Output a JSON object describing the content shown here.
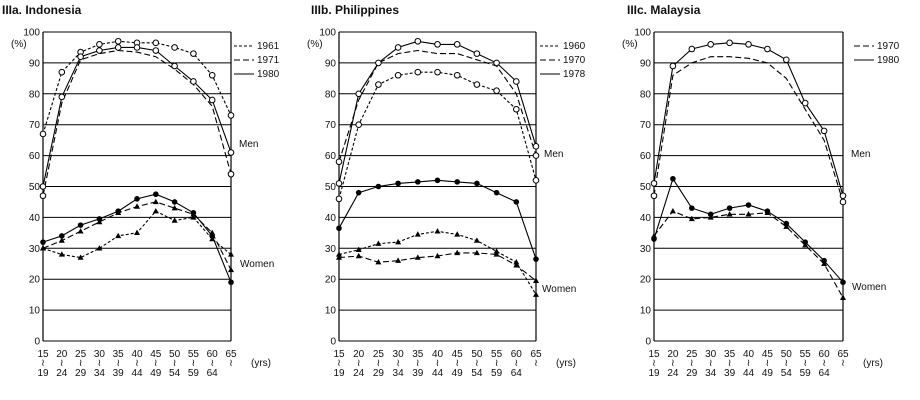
{
  "chart_data": [
    {
      "type": "line",
      "title": "IIIa. Indonesia",
      "y_unit_label": "(%)",
      "x_unit_label": "(yrs)",
      "ylim": [
        0,
        100
      ],
      "yticks": [
        "0",
        "10",
        "20",
        "30",
        "40",
        "50",
        "60",
        "70",
        "80",
        "90",
        "100"
      ],
      "x_labels": [
        [
          "15",
          "19"
        ],
        [
          "20",
          "24"
        ],
        [
          "25",
          "29"
        ],
        [
          "30",
          "34"
        ],
        [
          "35",
          "39"
        ],
        [
          "40",
          "44"
        ],
        [
          "45",
          "49"
        ],
        [
          "50",
          "54"
        ],
        [
          "55",
          "59"
        ],
        [
          "60",
          "64"
        ],
        [
          "65",
          ""
        ]
      ],
      "group_labels": {
        "men": "Men",
        "women": "Women"
      },
      "series": [
        {
          "name": "1961",
          "dash": "short",
          "group": "men",
          "values": [
            67,
            87,
            93.5,
            96,
            97,
            96.5,
            96.5,
            95,
            93,
            86,
            73
          ]
        },
        {
          "name": "1971",
          "dash": "long",
          "group": "men",
          "values": [
            47,
            77,
            91,
            93,
            94,
            93.5,
            92,
            88,
            83,
            76,
            54
          ]
        },
        {
          "name": "1980",
          "dash": "solid",
          "group": "men",
          "values": [
            50,
            79,
            92,
            94,
            95,
            95,
            94,
            89,
            84,
            78,
            61
          ]
        },
        {
          "group": "women",
          "dash": "short",
          "values": [
            30,
            28,
            27,
            30,
            34,
            35,
            42,
            39,
            40,
            33,
            28
          ]
        },
        {
          "group": "women",
          "dash": "long",
          "values": [
            30,
            32.5,
            35.5,
            38.5,
            41.5,
            43.5,
            45,
            43,
            41,
            35,
            23
          ]
        },
        {
          "group": "women",
          "dash": "solid",
          "values": [
            32,
            34,
            37.5,
            39.5,
            42,
            46,
            47.5,
            45,
            41.5,
            34,
            19
          ]
        }
      ]
    },
    {
      "type": "line",
      "title": "IIIb. Philippines",
      "y_unit_label": "(%)",
      "x_unit_label": "(yrs)",
      "ylim": [
        0,
        100
      ],
      "yticks": [
        "0",
        "10",
        "20",
        "30",
        "40",
        "50",
        "60",
        "70",
        "80",
        "90",
        "100"
      ],
      "x_labels": [
        [
          "15",
          "19"
        ],
        [
          "20",
          "24"
        ],
        [
          "25",
          "29"
        ],
        [
          "30",
          "34"
        ],
        [
          "35",
          "39"
        ],
        [
          "40",
          "44"
        ],
        [
          "45",
          "49"
        ],
        [
          "50",
          "54"
        ],
        [
          "55",
          "59"
        ],
        [
          "60",
          "64"
        ],
        [
          "65",
          ""
        ]
      ],
      "group_labels": {
        "men": "Men",
        "women": "Women"
      },
      "series": [
        {
          "name": "1960",
          "dash": "short",
          "group": "men",
          "values": [
            46,
            70,
            83,
            86,
            87,
            87,
            86,
            83,
            81,
            75,
            52
          ]
        },
        {
          "name": "1970",
          "dash": "long",
          "group": "men",
          "values": [
            58,
            78,
            90,
            93,
            94,
            93,
            93,
            91,
            89,
            80,
            60
          ]
        },
        {
          "name": "1978",
          "dash": "solid",
          "group": "men",
          "values": [
            51,
            80,
            90,
            95,
            97,
            96,
            96,
            93,
            90,
            84,
            63
          ]
        },
        {
          "group": "women",
          "dash": "long",
          "values": [
            27,
            27.5,
            25.5,
            26,
            27,
            27.5,
            28.5,
            28.5,
            28,
            24.5,
            19.5
          ]
        },
        {
          "group": "women",
          "dash": "short",
          "values": [
            28,
            29.5,
            31.5,
            32,
            34.5,
            35.5,
            34.5,
            32.5,
            29,
            25.5,
            15
          ]
        },
        {
          "group": "women",
          "dash": "solid",
          "values": [
            36.5,
            48,
            50,
            51,
            51.5,
            52,
            51.5,
            51,
            48,
            45,
            26.5
          ]
        }
      ]
    },
    {
      "type": "line",
      "title": "IIIc. Malaysia",
      "y_unit_label": "(%)",
      "x_unit_label": "(yrs)",
      "ylim": [
        0,
        100
      ],
      "yticks": [
        "0",
        "10",
        "20",
        "30",
        "40",
        "50",
        "60",
        "70",
        "80",
        "90",
        "100"
      ],
      "x_labels": [
        [
          "15",
          "19"
        ],
        [
          "20",
          "24"
        ],
        [
          "25",
          "29"
        ],
        [
          "30",
          "34"
        ],
        [
          "35",
          "39"
        ],
        [
          "40",
          "44"
        ],
        [
          "45",
          "49"
        ],
        [
          "50",
          "54"
        ],
        [
          "55",
          "59"
        ],
        [
          "60",
          "64"
        ],
        [
          "65",
          ""
        ]
      ],
      "group_labels": {
        "men": "Men",
        "women": "Women"
      },
      "series": [
        {
          "name": "1970",
          "dash": "long",
          "group": "men",
          "values": [
            47,
            86,
            90,
            92,
            92,
            91.5,
            90,
            85,
            75,
            65,
            45
          ]
        },
        {
          "name": "1980",
          "dash": "solid",
          "group": "men",
          "values": [
            51,
            89,
            94.5,
            96,
            96.5,
            96,
            94.5,
            91,
            77,
            68,
            47
          ]
        },
        {
          "group": "women",
          "dash": "long",
          "values": [
            34,
            42,
            39.5,
            40,
            41,
            41,
            41.5,
            37,
            31,
            25,
            14
          ]
        },
        {
          "group": "women",
          "dash": "solid",
          "values": [
            33,
            52.5,
            43,
            41,
            43,
            44,
            42,
            38,
            32,
            26,
            19
          ]
        }
      ]
    }
  ]
}
